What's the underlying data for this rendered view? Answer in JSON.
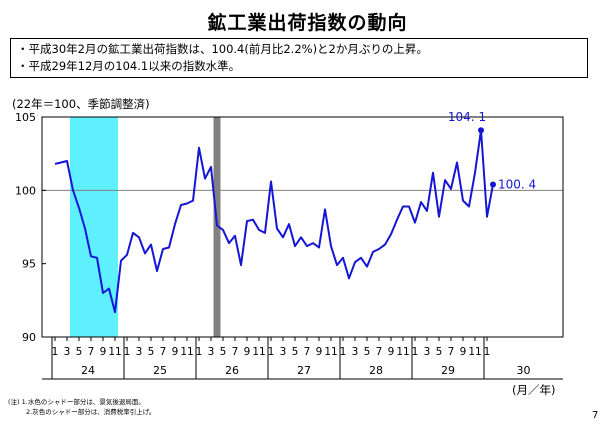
{
  "title": "鉱工業出荷指数の動向",
  "summary_lines": [
    "・平成30年2月の鉱工業出荷指数は、100.4(前月比2.2%)と2か月ぶりの上昇。",
    "・平成29年12月の104.1以来の指数水準。"
  ],
  "unit_label": "(22年＝100、季節調整済)",
  "month_year_label": "(月／年)",
  "notes": [
    "(注) 1.水色のシャドー部分は、景気後退局面。",
    "2.灰色のシャドー部分は、消費税率引上げ。"
  ],
  "page_number": "7",
  "colors": {
    "line": "#1515d6",
    "recession_shade": "#5ff0ff",
    "tax_shade": "#808080",
    "reference_line": "#808080"
  },
  "chart_data": {
    "type": "line",
    "x_unit": "month of year (Heisei era)",
    "ylim": [
      90,
      105
    ],
    "y_ticks": [
      90,
      95,
      100,
      105
    ],
    "x_tick_labels": [
      "1",
      "3",
      "5",
      "7",
      "9",
      "11",
      "1",
      "3",
      "5",
      "7",
      "9",
      "11",
      "1",
      "3",
      "5",
      "7",
      "9",
      "11",
      "1",
      "3",
      "5",
      "7",
      "9",
      "11",
      "1",
      "3",
      "5",
      "7",
      "9",
      "11",
      "1",
      "3",
      "5",
      "7",
      "9",
      "11",
      "1"
    ],
    "year_labels": [
      "24",
      "25",
      "26",
      "27",
      "28",
      "29",
      "30"
    ],
    "reference_line": 100,
    "grid": false,
    "shaded_periods": [
      {
        "kind": "recession",
        "start": "H24-04",
        "end": "H24-11"
      },
      {
        "kind": "tax_increase",
        "start": "H26-04",
        "end": "H26-04"
      }
    ],
    "series": [
      {
        "x": [
          "H24-01",
          "H24-02",
          "H24-03",
          "H24-04",
          "H24-05",
          "H24-06",
          "H24-07",
          "H24-08",
          "H24-09",
          "H24-10",
          "H24-11",
          "H24-12",
          "H25-01",
          "H25-02",
          "H25-03",
          "H25-04",
          "H25-05",
          "H25-06",
          "H25-07",
          "H25-08",
          "H25-09",
          "H25-10",
          "H25-11",
          "H25-12",
          "H26-01",
          "H26-02",
          "H26-03",
          "H26-04",
          "H26-05",
          "H26-06",
          "H26-07",
          "H26-08",
          "H26-09",
          "H26-10",
          "H26-11",
          "H26-12",
          "H27-01",
          "H27-02",
          "H27-03",
          "H27-04",
          "H27-05",
          "H27-06",
          "H27-07",
          "H27-08",
          "H27-09",
          "H27-10",
          "H27-11",
          "H27-12",
          "H28-01",
          "H28-02",
          "H28-03",
          "H28-04",
          "H28-05",
          "H28-06",
          "H28-07",
          "H28-08",
          "H28-09",
          "H28-10",
          "H28-11",
          "H28-12",
          "H29-01",
          "H29-02",
          "H29-03",
          "H29-04",
          "H29-05",
          "H29-06",
          "H29-07",
          "H29-08",
          "H29-09",
          "H29-10",
          "H29-11",
          "H29-12",
          "H30-01",
          "H30-02"
        ],
        "values": [
          101.8,
          101.9,
          102.0,
          100.0,
          98.8,
          97.4,
          95.5,
          95.4,
          93.0,
          93.3,
          91.7,
          95.2,
          95.6,
          97.1,
          96.8,
          95.7,
          96.3,
          94.5,
          96.0,
          96.1,
          97.7,
          99.0,
          99.1,
          99.3,
          102.9,
          100.8,
          101.6,
          97.6,
          97.3,
          96.4,
          96.9,
          94.9,
          97.9,
          98.0,
          97.3,
          97.1,
          100.6,
          97.4,
          96.8,
          97.7,
          96.2,
          96.8,
          96.2,
          96.4,
          96.1,
          98.7,
          96.2,
          94.9,
          95.4,
          94.0,
          95.1,
          95.4,
          94.8,
          95.8,
          96.0,
          96.3,
          97.0,
          98.0,
          98.9,
          98.9,
          97.8,
          99.2,
          98.6,
          101.2,
          98.2,
          100.7,
          100.1,
          101.9,
          99.3,
          98.9,
          101.2,
          104.1,
          98.2,
          100.4
        ]
      }
    ],
    "annotations": [
      {
        "x": "H29-12",
        "value": 104.1,
        "label": "104. 1"
      },
      {
        "x": "H30-02",
        "value": 100.4,
        "label": "100. 4"
      }
    ]
  }
}
